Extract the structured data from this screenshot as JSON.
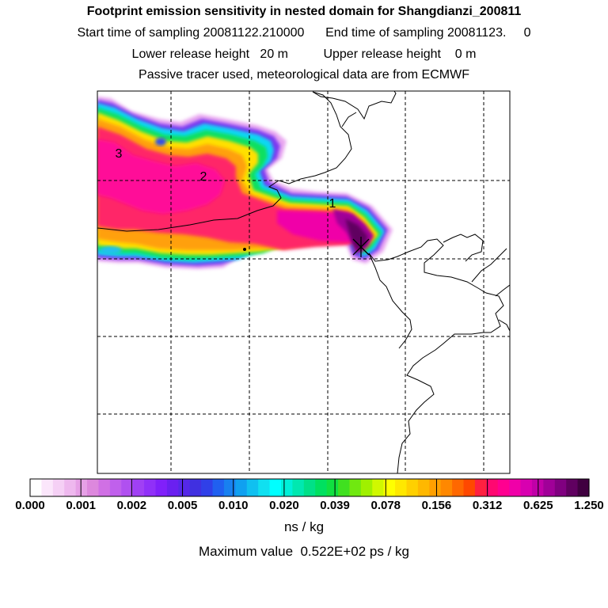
{
  "header": {
    "title": "Footprint emission sensitivity in nested domain for Shangdianzi_200811",
    "line2": "Start time of sampling 20081122.210000      End time of sampling 20081123.     0",
    "line3": "Lower release height   20 m          Upper release height    0 m",
    "line4": "Passive tracer used, meteorological data are from ECMWF"
  },
  "map": {
    "labels": [
      {
        "text": "3"
      },
      {
        "text": "2"
      },
      {
        "text": "1"
      }
    ],
    "release_marker": "x-marker-icon",
    "grid": true
  },
  "colorbar": {
    "tick_labels": [
      "0.000",
      "0.001",
      "0.002",
      "0.005",
      "0.010",
      "0.020",
      "0.039",
      "0.078",
      "0.156",
      "0.312",
      "0.625",
      "1.250"
    ],
    "colors": [
      "#ffffff",
      "#fbe6fb",
      "#f5d0f5",
      "#eeb8ee",
      "#e6a0e6",
      "#dd88dd",
      "#d070e4",
      "#c060ec",
      "#b050f0",
      "#a040f4",
      "#9030f8",
      "#8020fa",
      "#6a20f0",
      "#5528e8",
      "#4030e0",
      "#3040e8",
      "#2060f0",
      "#1880f0",
      "#10a0f0",
      "#10c0f0",
      "#10e0f0",
      "#00ffff",
      "#00f0d8",
      "#00e8b0",
      "#00e088",
      "#00e060",
      "#10e040",
      "#40e020",
      "#70e810",
      "#a0f000",
      "#d0f800",
      "#ffff00",
      "#ffe800",
      "#ffd000",
      "#ffb800",
      "#ffa000",
      "#ff8800",
      "#ff6800",
      "#ff4800",
      "#ff2040",
      "#ff0870",
      "#ff0090",
      "#f000a8",
      "#d800b0",
      "#c000a8",
      "#a00098",
      "#800080",
      "#600060",
      "#400040"
    ],
    "unit": "ns / kg",
    "maximum": "Maximum value  0.522E+02 ps / kg"
  }
}
